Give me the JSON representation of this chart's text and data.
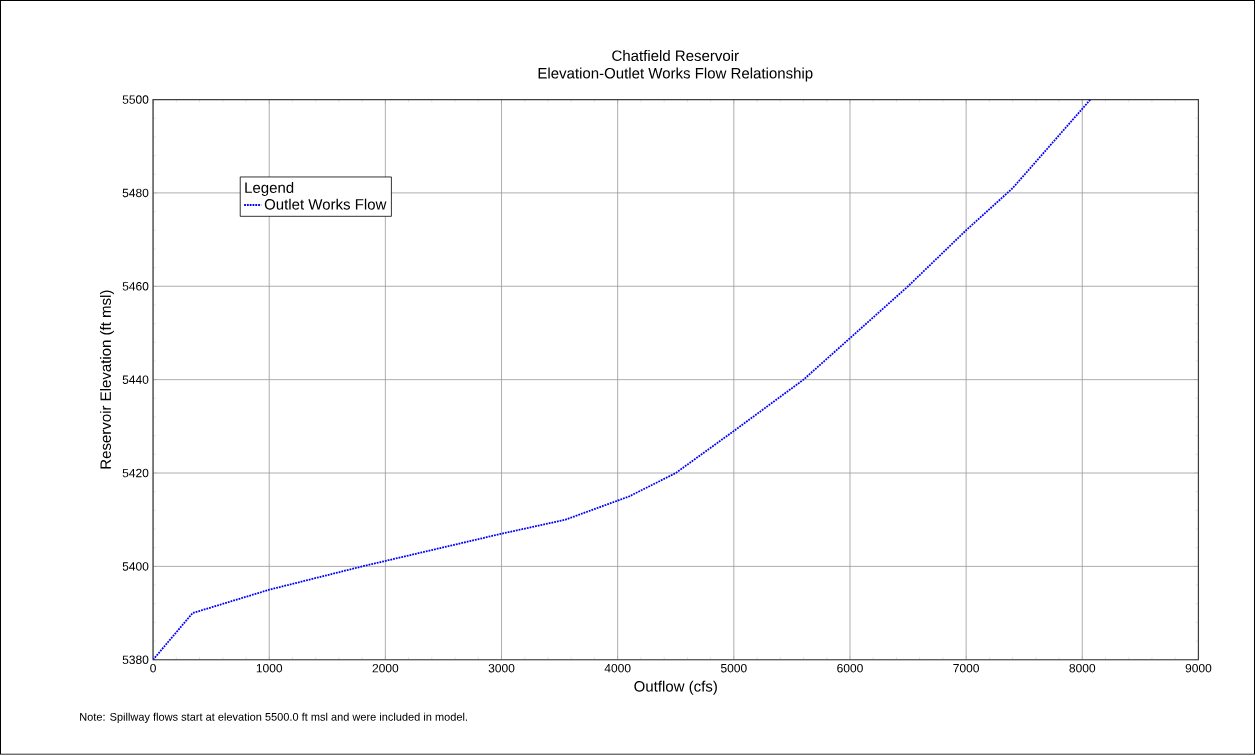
{
  "chart_data": {
    "type": "line",
    "title": "Chatfield Reservoir",
    "subtitle": "Elevation-Outlet Works Flow Relationship",
    "xlabel": "Outflow (cfs)",
    "ylabel": "Reservoir Elevation (ft msl)",
    "legend_title": "Legend",
    "x": [
      0,
      340,
      1000,
      1800,
      3000,
      3550,
      4100,
      4500,
      5000,
      5600,
      6050,
      6500,
      7000,
      7400,
      8070
    ],
    "series": [
      {
        "name": "Outlet Works Flow",
        "color": "#0000ff",
        "line_style": "dotted",
        "values": [
          5380,
          5390,
          5395,
          5400,
          5407,
          5410,
          5415,
          5420,
          5429,
          5440,
          5450,
          5460,
          5472,
          5481,
          5500
        ]
      }
    ],
    "xlim": [
      0,
      9000
    ],
    "xticks": [
      0,
      1000,
      2000,
      3000,
      4000,
      5000,
      6000,
      7000,
      8000,
      9000
    ],
    "ylim": [
      5380,
      5500
    ],
    "yticks": [
      5380,
      5400,
      5420,
      5440,
      5460,
      5480,
      5500
    ],
    "grid": true,
    "legend": "top left",
    "marker": "none",
    "annotations": [
      "Note: Spillway flows start at elevation 5500.0 ft msl and were included in model."
    ]
  }
}
